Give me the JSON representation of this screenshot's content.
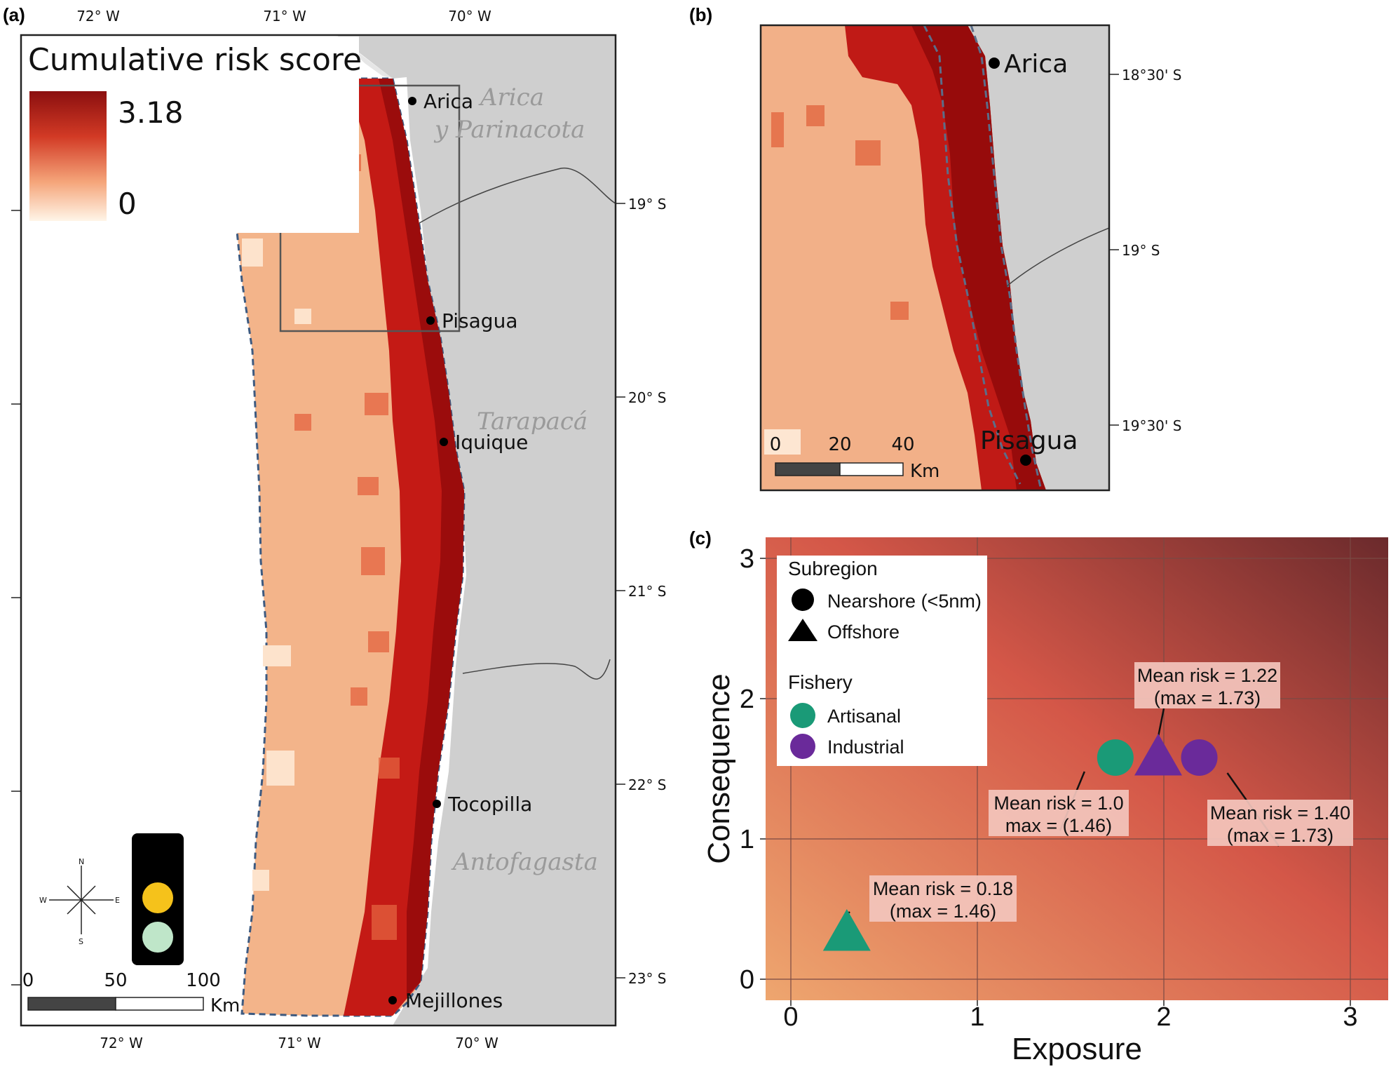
{
  "panels": {
    "a": {
      "label": "(a)",
      "legend": {
        "title": "Cumulative risk score",
        "max_label": "3.18",
        "min_label": "0"
      },
      "lon_ticks": [
        "72° W",
        "71° W",
        "70° W"
      ],
      "lat_ticks": [
        "19° S",
        "20° S",
        "21° S",
        "22° S",
        "23° S"
      ],
      "cities": [
        "Arica",
        "Pisagua",
        "Iquique",
        "Tocopilla",
        "Mejillones"
      ],
      "regions": [
        "Arica",
        "y Parinacota",
        "Tarapacá",
        "Antofagasta"
      ],
      "scale": {
        "labels": [
          "0",
          "50",
          "100"
        ],
        "unit": "Km"
      },
      "compass": {
        "n": "N",
        "s": "S",
        "e": "E",
        "w": "W"
      },
      "traffic_light": {
        "colors": [
          "#000000",
          "#f5c21b",
          "#bfe6c9"
        ]
      }
    },
    "b": {
      "label": "(b)",
      "lat_ticks": [
        "18°30' S",
        "19° S",
        "19°30' S"
      ],
      "cities": [
        "Arica",
        "Pisagua"
      ],
      "scale": {
        "labels": [
          "0",
          "20",
          "40"
        ],
        "unit": "Km"
      }
    },
    "c": {
      "label": "(c)",
      "chart_data": {
        "type": "scatter",
        "xlabel": "Exposure",
        "ylabel": "Consequence",
        "xlim": [
          0,
          3
        ],
        "ylim": [
          0,
          3
        ],
        "x_ticks": [
          "0",
          "1",
          "2",
          "3"
        ],
        "y_ticks": [
          "0",
          "1",
          "2",
          "3"
        ],
        "legend": {
          "subregion_title": "Subregion",
          "subregion_items": [
            "Nearshore (<5nm)",
            "Offshore"
          ],
          "fishery_title": "Fishery",
          "fishery_items": [
            "Artisanal",
            "Industrial"
          ],
          "fishery_colors": [
            "#1a9a77",
            "#6a2a9a"
          ]
        },
        "points": [
          {
            "fishery": "Artisanal",
            "subregion": "Offshore",
            "x": 0.3,
            "y": 0.33,
            "label1": "Mean risk = 0.18",
            "label2": "(max = 1.46)"
          },
          {
            "fishery": "Artisanal",
            "subregion": "Nearshore",
            "x": 1.74,
            "y": 1.58,
            "label1": "Mean risk = 1.0",
            "label2": "max = (1.46)"
          },
          {
            "fishery": "Industrial",
            "subregion": "Offshore",
            "x": 1.97,
            "y": 1.58,
            "label1": "Mean risk = 1.22",
            "label2": "(max = 1.73)"
          },
          {
            "fishery": "Industrial",
            "subregion": "Nearshore",
            "x": 2.19,
            "y": 1.58,
            "label1": "Mean risk = 1.40",
            "label2": "(max = 1.73)"
          }
        ]
      }
    }
  }
}
